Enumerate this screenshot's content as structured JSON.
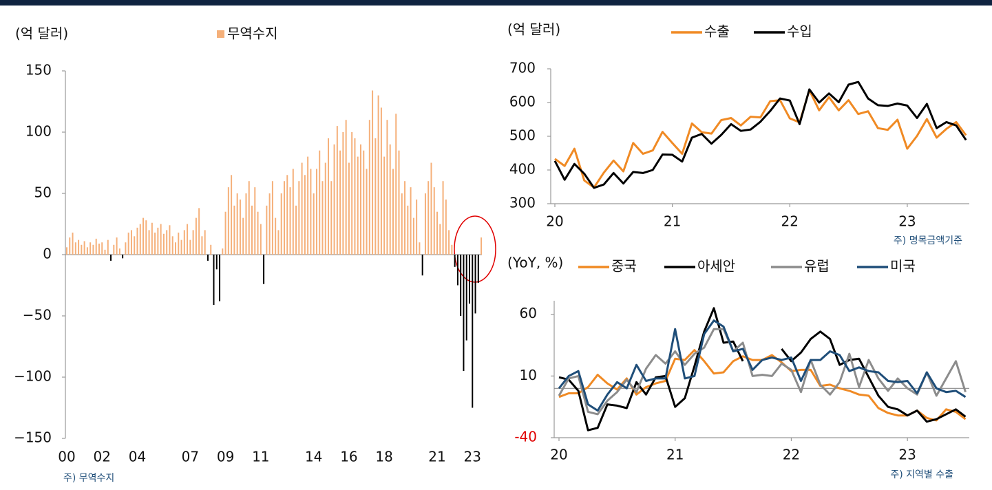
{
  "chart_data": [
    {
      "type": "bar",
      "unit_label": "(억 달러)",
      "note": "주) 무역수지",
      "categories": [
        "00",
        null,
        null,
        null,
        null,
        null,
        null,
        null,
        null,
        null,
        null,
        null,
        "02",
        null,
        null,
        null,
        null,
        null,
        null,
        null,
        null,
        null,
        null,
        null,
        "04",
        null,
        null,
        null,
        null,
        null,
        null,
        null,
        null,
        null,
        null,
        null,
        null,
        null,
        null,
        null,
        null,
        null,
        "07",
        null,
        null,
        null,
        null,
        null,
        null,
        null,
        null,
        null,
        null,
        null,
        "09",
        null,
        null,
        null,
        null,
        null,
        null,
        null,
        null,
        null,
        null,
        null,
        "11",
        null,
        null,
        null,
        null,
        null,
        null,
        null,
        null,
        null,
        null,
        null,
        null,
        null,
        null,
        null,
        null,
        null,
        "14",
        null,
        null,
        null,
        null,
        null,
        null,
        null,
        null,
        null,
        null,
        null,
        "16",
        null,
        null,
        null,
        null,
        null,
        null,
        null,
        null,
        null,
        null,
        null,
        "18",
        null,
        null,
        null,
        null,
        null,
        null,
        null,
        null,
        null,
        null,
        null,
        null,
        null,
        null,
        null,
        null,
        null,
        "21",
        null,
        null,
        null,
        null,
        null,
        null,
        null,
        null,
        null,
        null,
        null,
        "23",
        null,
        null,
        null
      ],
      "series": [
        {
          "name": "무역수지",
          "color": "#f5b07a",
          "negative_color": "#000000",
          "values": [
            6,
            14,
            18,
            10,
            12,
            8,
            11,
            6,
            10,
            8,
            13,
            9,
            10,
            4,
            12,
            -5,
            8,
            14,
            5,
            -3,
            10,
            18,
            20,
            15,
            22,
            25,
            30,
            28,
            20,
            26,
            18,
            22,
            25,
            17,
            20,
            24,
            15,
            10,
            18,
            12,
            20,
            25,
            12,
            20,
            30,
            38,
            15,
            20,
            -5,
            8,
            -41,
            -12,
            -38,
            5,
            35,
            55,
            65,
            40,
            50,
            45,
            30,
            50,
            60,
            40,
            55,
            35,
            25,
            -24,
            40,
            50,
            60,
            30,
            20,
            50,
            60,
            65,
            55,
            70,
            40,
            60,
            75,
            65,
            80,
            70,
            50,
            70,
            85,
            60,
            75,
            95,
            60,
            90,
            105,
            85,
            100,
            110,
            75,
            100,
            95,
            80,
            90,
            85,
            70,
            110,
            134,
            95,
            130,
            120,
            80,
            110,
            90,
            70,
            115,
            85,
            50,
            60,
            40,
            55,
            30,
            45,
            10,
            -17,
            50,
            60,
            75,
            55,
            35,
            25,
            60,
            45,
            20,
            8,
            -10,
            -25,
            -50,
            -95,
            -70,
            -40,
            -125,
            -48,
            -23,
            14
          ]
        }
      ],
      "ylim": [
        -150,
        150
      ],
      "yticks": [
        {
          "value": -150,
          "label": "−150"
        },
        {
          "value": -100,
          "label": "−100"
        },
        {
          "value": -50,
          "label": "−50"
        },
        0,
        50,
        100,
        150
      ]
    },
    {
      "type": "line",
      "unit_label": "(억 달러)",
      "note": "주) 명목금액기준",
      "categories": [
        "20",
        null,
        null,
        null,
        null,
        null,
        null,
        null,
        null,
        null,
        null,
        null,
        "21",
        null,
        null,
        null,
        null,
        null,
        null,
        null,
        null,
        null,
        null,
        null,
        "22",
        null,
        null,
        null,
        null,
        null,
        null,
        null,
        null,
        null,
        null,
        null,
        "23",
        null,
        null,
        null,
        null,
        null,
        null
      ],
      "series": [
        {
          "name": "수출",
          "color": "#f08a24",
          "values": [
            433,
            412,
            463,
            369,
            348,
            392,
            428,
            396,
            480,
            448,
            458,
            513,
            480,
            448,
            538,
            512,
            508,
            548,
            554,
            532,
            558,
            556,
            604,
            607,
            553,
            541,
            637,
            577,
            616,
            577,
            607,
            566,
            574,
            524,
            519,
            549,
            463,
            501,
            551,
            496,
            522,
            542,
            503
          ]
        },
        {
          "name": "수입",
          "color": "#000000",
          "values": [
            427,
            371,
            418,
            389,
            347,
            357,
            391,
            360,
            394,
            391,
            400,
            446,
            445,
            425,
            496,
            507,
            478,
            504,
            536,
            516,
            520,
            543,
            575,
            612,
            606,
            536,
            639,
            600,
            627,
            601,
            653,
            661,
            612,
            592,
            590,
            597,
            591,
            554,
            596,
            524,
            542,
            532,
            489
          ]
        }
      ],
      "ylim": [
        300,
        700
      ],
      "yticks": [
        300,
        400,
        500,
        600,
        700
      ]
    },
    {
      "type": "line",
      "unit_label": "(YoY, %)",
      "note": "주) 지역별 수출",
      "zero_line": true,
      "negative_tick_color": "#e00000",
      "categories": [
        "20",
        null,
        null,
        null,
        null,
        null,
        null,
        null,
        null,
        null,
        null,
        null,
        "21",
        null,
        null,
        null,
        null,
        null,
        null,
        null,
        null,
        null,
        null,
        null,
        "22",
        null,
        null,
        null,
        null,
        null,
        null,
        null,
        null,
        null,
        null,
        null,
        "23",
        null,
        null,
        null,
        null,
        null,
        null
      ],
      "series": [
        {
          "name": "중국",
          "color": "#f08a24",
          "values": [
            -7,
            -4,
            -4,
            1,
            11,
            4,
            -1,
            8,
            -5,
            1,
            4,
            6,
            24,
            23,
            31,
            22,
            12,
            13,
            22,
            26,
            23,
            23,
            27,
            21,
            14,
            15,
            15,
            2,
            3,
            0,
            -2,
            -5,
            -6,
            -16,
            -20,
            -22,
            -22,
            -18,
            -24,
            -26,
            -17,
            -19,
            -25
          ]
        },
        {
          "name": "아세안",
          "color": "#000000",
          "values": [
            9,
            7,
            -2,
            -34,
            -32,
            -13,
            -14,
            -16,
            5,
            -5,
            9,
            10,
            -15,
            -8,
            18,
            46,
            65,
            37,
            38,
            22,
            null,
            null,
            null,
            32,
            22,
            29,
            40,
            46,
            40,
            19,
            23,
            24,
            9,
            -6,
            -15,
            -17,
            -22,
            -18,
            -27,
            -25,
            -21,
            -17,
            -23
          ]
        },
        {
          "name": "유럽",
          "color": "#8c8c8c",
          "values": [
            -6,
            8,
            10,
            -19,
            -21,
            -10,
            -3,
            7,
            -3,
            16,
            27,
            20,
            30,
            19,
            28,
            33,
            48,
            48,
            30,
            37,
            10,
            11,
            10,
            20,
            15,
            -3,
            23,
            3,
            -5,
            5,
            28,
            1,
            23,
            8,
            -2,
            8,
            0,
            -5,
            13,
            -6,
            8,
            22,
            -3
          ]
        },
        {
          "name": "미국",
          "color": "#1f4e79",
          "values": [
            0,
            10,
            14,
            -13,
            -18,
            -5,
            5,
            0,
            19,
            6,
            8,
            8,
            48,
            8,
            10,
            44,
            55,
            50,
            30,
            32,
            15,
            23,
            25,
            23,
            25,
            6,
            23,
            23,
            30,
            27,
            14,
            17,
            14,
            13,
            6,
            5,
            6,
            -4,
            13,
            0,
            -3,
            -2,
            -7
          ]
        }
      ],
      "ylim": [
        -40,
        71
      ],
      "yticks": [
        -40,
        10,
        60
      ]
    }
  ]
}
